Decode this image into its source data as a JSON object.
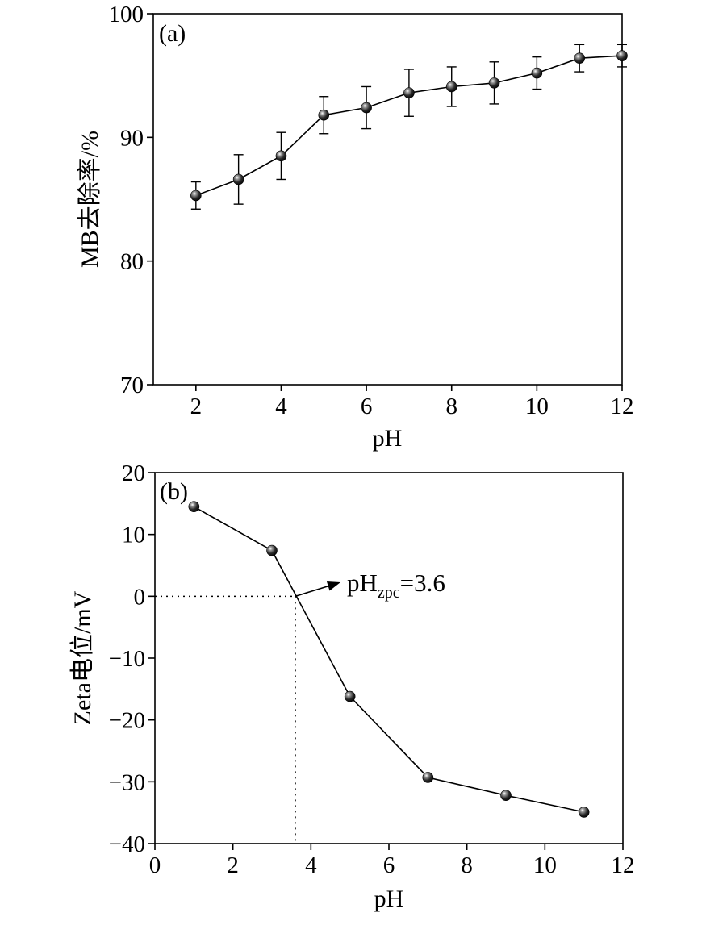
{
  "chart_data": [
    {
      "panel": "(a)",
      "type": "line",
      "xlabel": "pH",
      "ylabel": "MB去除率/%",
      "xlim": [
        1,
        12
      ],
      "ylim": [
        70,
        100
      ],
      "x_ticks": [
        2,
        4,
        6,
        8,
        10,
        12
      ],
      "y_ticks": [
        70,
        80,
        90,
        100
      ],
      "grid": false,
      "legend": "none",
      "marker": "sphere",
      "error_bars": true,
      "series": [
        {
          "x": [
            2,
            3,
            4,
            5,
            6,
            7,
            8,
            9,
            10,
            11,
            12
          ],
          "y": [
            85.3,
            86.6,
            88.5,
            91.8,
            92.4,
            93.6,
            94.1,
            94.4,
            95.2,
            96.4,
            96.6
          ],
          "err": [
            1.1,
            2.0,
            1.9,
            1.5,
            1.7,
            1.9,
            1.6,
            1.7,
            1.3,
            1.1,
            0.9
          ]
        }
      ]
    },
    {
      "panel": "(b)",
      "type": "line",
      "xlabel": "pH",
      "ylabel": "Zeta电位/mV",
      "xlim": [
        0,
        12
      ],
      "ylim": [
        -40,
        20
      ],
      "x_ticks": [
        0,
        2,
        4,
        6,
        8,
        10,
        12
      ],
      "y_ticks": [
        -40,
        -30,
        -20,
        -10,
        0,
        10,
        20
      ],
      "grid": false,
      "legend": "none",
      "marker": "sphere",
      "series": [
        {
          "x": [
            1,
            3,
            5,
            7,
            9,
            11
          ],
          "y": [
            14.5,
            7.4,
            -16.2,
            -29.3,
            -32.2,
            -34.9
          ]
        }
      ],
      "reference_point": {
        "x": 3.6,
        "y": 0
      },
      "annotation": {
        "base": "pH",
        "sub": "zpc",
        "rest": "=3.6"
      }
    }
  ]
}
